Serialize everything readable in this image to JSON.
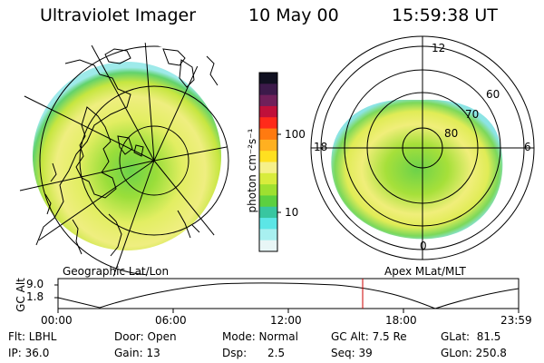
{
  "header": {
    "instrument": "Ultraviolet Imager",
    "date": "10 May 00",
    "time": "15:59:38 UT"
  },
  "colorbar": {
    "unit_label": "photon cm⁻²s⁻¹",
    "tick_100": "100",
    "tick_10": "10",
    "colors": [
      "#101020",
      "#3c1a4a",
      "#70205a",
      "#c0103a",
      "#ff2a1a",
      "#ff7a10",
      "#ffb020",
      "#ffe020",
      "#f6f08a",
      "#d8ec3c",
      "#9ee030",
      "#5cd040",
      "#38c6a0",
      "#5ce6e6",
      "#a8f0f0",
      "#e8f6f6"
    ]
  },
  "left_map": {
    "caption": "Geographic Lat/Lon"
  },
  "right_map": {
    "caption": "Apex MLat/MLT",
    "labels": {
      "mlt12": "12",
      "mlt18": "18",
      "mlt6": "6",
      "mlt0": "0",
      "lat60": "60",
      "lat70": "70",
      "lat80": "80"
    }
  },
  "altitude_plot": {
    "axis_label": "GC Alt",
    "y_high": "9.0",
    "y_low": "1.8",
    "x_ticks": [
      "00:00",
      "06:00",
      "12:00",
      "18:00",
      "23:59"
    ],
    "marker_color": "#cc0000"
  },
  "info": {
    "filter": "Flt: LBHL",
    "ip": "IP: 36.0",
    "door": "Door: Open",
    "gain": "Gain: 13",
    "mode": "Mode: Normal",
    "dsp": "Dsp:      2.5",
    "gc_alt": "GC Alt: 7.5 Re",
    "seq": "Seq: 39",
    "glat": "GLat:  81.5",
    "glon": "GLon: 250.8"
  }
}
